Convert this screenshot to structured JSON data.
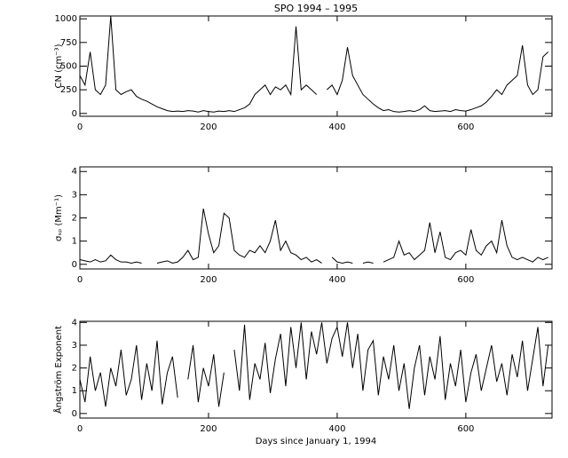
{
  "chart_data": [
    {
      "type": "line",
      "title": "SPO 1994 – 1995",
      "ylabel": "CN (cm⁻³)",
      "x": [
        0,
        8,
        16,
        24,
        32,
        40,
        48,
        56,
        64,
        72,
        80,
        88,
        96,
        104,
        112,
        120,
        128,
        136,
        144,
        152,
        160,
        168,
        176,
        184,
        192,
        200,
        208,
        216,
        224,
        232,
        240,
        248,
        256,
        264,
        272,
        280,
        288,
        296,
        304,
        312,
        320,
        328,
        336,
        344,
        352,
        360,
        368,
        376,
        384,
        392,
        400,
        408,
        416,
        424,
        432,
        440,
        448,
        456,
        464,
        472,
        480,
        488,
        496,
        504,
        512,
        520,
        528,
        536,
        544,
        552,
        560,
        568,
        576,
        584,
        592,
        600,
        608,
        616,
        624,
        632,
        640,
        648,
        656,
        664,
        672,
        680,
        688,
        696,
        704,
        712,
        720,
        728
      ],
      "series": [
        {
          "color": "#000000",
          "values": [
            400,
            300,
            650,
            250,
            200,
            300,
            1030,
            250,
            200,
            230,
            250,
            180,
            150,
            130,
            100,
            70,
            50,
            30,
            20,
            25,
            20,
            30,
            25,
            15,
            30,
            20,
            15,
            25,
            20,
            30,
            20,
            40,
            60,
            100,
            200,
            250,
            300,
            200,
            280,
            250,
            300,
            200,
            920,
            250,
            300,
            250,
            200,
            null,
            250,
            300,
            200,
            350,
            700,
            400,
            300,
            200,
            150,
            100,
            60,
            30,
            40,
            20,
            15,
            20,
            30,
            20,
            40,
            80,
            30,
            20,
            25,
            30,
            20,
            40,
            30,
            25,
            40,
            60,
            80,
            120,
            180,
            250,
            200,
            300,
            350,
            400,
            720,
            300,
            200,
            250,
            600,
            650
          ]
        }
      ],
      "xlim": [
        0,
        734
      ],
      "xticks": [
        0,
        200,
        400,
        600
      ],
      "ylim": [
        -30,
        1030
      ],
      "yticks": [
        0,
        250,
        500,
        750,
        1000
      ]
    },
    {
      "type": "line",
      "ylabel": "σₛₚ (Mm⁻¹)",
      "x": [
        0,
        8,
        16,
        24,
        32,
        40,
        48,
        56,
        64,
        72,
        80,
        88,
        96,
        104,
        112,
        120,
        128,
        136,
        144,
        152,
        160,
        168,
        176,
        184,
        192,
        200,
        208,
        216,
        224,
        232,
        240,
        248,
        256,
        264,
        272,
        280,
        288,
        296,
        304,
        312,
        320,
        328,
        336,
        344,
        352,
        360,
        368,
        376,
        384,
        392,
        400,
        408,
        416,
        424,
        432,
        440,
        448,
        456,
        464,
        472,
        480,
        488,
        496,
        504,
        512,
        520,
        528,
        536,
        544,
        552,
        560,
        568,
        576,
        584,
        592,
        600,
        608,
        616,
        624,
        632,
        640,
        648,
        656,
        664,
        672,
        680,
        688,
        696,
        704,
        712,
        720,
        728
      ],
      "series": [
        {
          "color": "#000000",
          "values": [
            0.2,
            0.15,
            0.1,
            0.2,
            0.1,
            0.15,
            0.4,
            0.2,
            0.1,
            0.1,
            0.05,
            0.1,
            0.05,
            null,
            null,
            0.05,
            0.1,
            0.15,
            0.05,
            0.1,
            0.3,
            0.6,
            0.2,
            0.3,
            2.4,
            1.3,
            0.5,
            0.8,
            2.2,
            2.0,
            0.6,
            0.4,
            0.3,
            0.6,
            0.5,
            0.8,
            0.5,
            1.0,
            1.9,
            0.6,
            1.0,
            0.5,
            0.4,
            0.2,
            0.3,
            0.1,
            0.2,
            0.05,
            null,
            0.3,
            0.1,
            0.05,
            0.1,
            0.05,
            null,
            0.05,
            0.1,
            0.05,
            null,
            0.1,
            0.2,
            0.3,
            1.0,
            0.4,
            0.5,
            0.2,
            0.4,
            0.6,
            1.8,
            0.5,
            1.4,
            0.3,
            0.2,
            0.5,
            0.6,
            0.4,
            1.5,
            0.6,
            0.4,
            0.8,
            1.0,
            0.5,
            1.9,
            0.8,
            0.3,
            0.2,
            0.3,
            0.2,
            0.1,
            0.3,
            0.2,
            0.3
          ]
        }
      ],
      "xlim": [
        0,
        734
      ],
      "xticks": [
        0,
        200,
        400,
        600
      ],
      "ylim": [
        -0.2,
        4.2
      ],
      "yticks": [
        0,
        1,
        2,
        3,
        4
      ]
    },
    {
      "type": "line",
      "ylabel": "Ångström Exponent",
      "xlabel": "Days since January 1, 1994",
      "x": [
        0,
        8,
        16,
        24,
        32,
        40,
        48,
        56,
        64,
        72,
        80,
        88,
        96,
        104,
        112,
        120,
        128,
        136,
        144,
        152,
        160,
        168,
        176,
        184,
        192,
        200,
        208,
        216,
        224,
        232,
        240,
        248,
        256,
        264,
        272,
        280,
        288,
        296,
        304,
        312,
        320,
        328,
        336,
        344,
        352,
        360,
        368,
        376,
        384,
        392,
        400,
        408,
        416,
        424,
        432,
        440,
        448,
        456,
        464,
        472,
        480,
        488,
        496,
        504,
        512,
        520,
        528,
        536,
        544,
        552,
        560,
        568,
        576,
        584,
        592,
        600,
        608,
        616,
        624,
        632,
        640,
        648,
        656,
        664,
        672,
        680,
        688,
        696,
        704,
        712,
        720,
        728
      ],
      "series": [
        {
          "color": "#000000",
          "values": [
            1.5,
            0.5,
            2.5,
            1.0,
            1.8,
            0.3,
            2.0,
            1.2,
            2.8,
            0.8,
            1.5,
            3.0,
            0.6,
            2.2,
            1.0,
            3.2,
            0.4,
            1.8,
            2.5,
            0.7,
            null,
            1.5,
            3.0,
            0.5,
            2.0,
            1.2,
            2.6,
            0.3,
            1.8,
            null,
            2.8,
            1.0,
            3.9,
            0.6,
            2.2,
            1.5,
            3.1,
            0.9,
            2.4,
            3.5,
            1.2,
            3.8,
            2.0,
            4.0,
            1.5,
            3.6,
            2.6,
            4.0,
            2.2,
            3.3,
            3.8,
            2.5,
            4.0,
            2.0,
            3.5,
            1.0,
            2.8,
            3.2,
            0.8,
            2.5,
            1.5,
            3.0,
            1.0,
            2.2,
            0.2,
            2.0,
            3.0,
            0.8,
            2.5,
            1.5,
            3.4,
            0.6,
            2.2,
            1.2,
            2.8,
            0.5,
            1.8,
            2.6,
            1.0,
            2.0,
            3.0,
            1.4,
            2.2,
            0.8,
            2.6,
            1.6,
            3.2,
            1.0,
            2.4,
            3.8,
            1.2,
            3.0
          ]
        }
      ],
      "xlim": [
        0,
        734
      ],
      "xticks": [
        0,
        200,
        400,
        600
      ],
      "ylim": [
        -0.2,
        4.05
      ],
      "yticks": [
        0,
        1,
        2,
        3,
        4
      ]
    }
  ]
}
